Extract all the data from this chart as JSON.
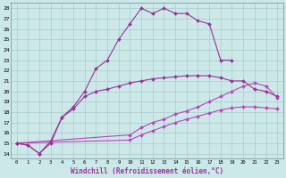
{
  "xlabel": "Windchill (Refroidissement éolien,°C)",
  "xlim": [
    -0.5,
    23.5
  ],
  "ylim": [
    13.5,
    28.5
  ],
  "x_ticks": [
    0,
    1,
    2,
    3,
    4,
    5,
    6,
    7,
    8,
    9,
    10,
    11,
    12,
    13,
    14,
    15,
    16,
    17,
    18,
    19,
    20,
    21,
    22,
    23
  ],
  "y_ticks": [
    14,
    15,
    16,
    17,
    18,
    19,
    20,
    21,
    22,
    23,
    24,
    25,
    26,
    27,
    28
  ],
  "bg_color": "#cce8e8",
  "grid_color": "#aacccc",
  "line_color_dark": "#993399",
  "line_color_light": "#bb44bb",
  "line1_x": [
    0,
    1,
    2,
    3,
    4,
    5,
    6,
    7,
    8,
    9,
    10,
    11,
    12,
    13,
    14,
    15,
    16,
    17,
    18,
    19
  ],
  "line1_y": [
    15.0,
    14.8,
    14.0,
    15.0,
    17.5,
    18.5,
    20.0,
    22.2,
    23.0,
    25.0,
    26.5,
    28.0,
    27.5,
    28.0,
    27.5,
    27.5,
    26.8,
    26.5,
    23.0,
    23.0
  ],
  "line2_x": [
    0,
    1,
    2,
    3,
    4,
    5,
    6,
    7,
    8,
    9,
    10,
    11,
    12,
    13,
    14,
    15,
    16,
    17,
    18,
    19,
    20,
    21,
    22,
    23
  ],
  "line2_y": [
    15.0,
    14.8,
    14.0,
    15.2,
    17.5,
    18.3,
    19.5,
    20.0,
    20.2,
    20.5,
    20.8,
    21.0,
    21.2,
    21.3,
    21.4,
    21.5,
    21.5,
    21.5,
    21.3,
    21.0,
    21.0,
    20.2,
    20.0,
    19.5
  ],
  "line3_x": [
    0,
    10,
    11,
    12,
    13,
    14,
    15,
    16,
    17,
    18,
    19,
    20,
    21,
    22,
    23
  ],
  "line3_y": [
    15.0,
    15.3,
    15.8,
    16.2,
    16.6,
    17.0,
    17.3,
    17.6,
    17.9,
    18.2,
    18.4,
    18.5,
    18.5,
    18.4,
    18.3
  ],
  "line4_x": [
    0,
    10,
    11,
    12,
    13,
    14,
    15,
    16,
    17,
    18,
    19,
    20,
    21,
    22,
    23
  ],
  "line4_y": [
    15.0,
    15.8,
    16.5,
    17.0,
    17.3,
    17.8,
    18.1,
    18.5,
    19.0,
    19.5,
    20.0,
    20.5,
    20.8,
    20.5,
    19.4
  ]
}
